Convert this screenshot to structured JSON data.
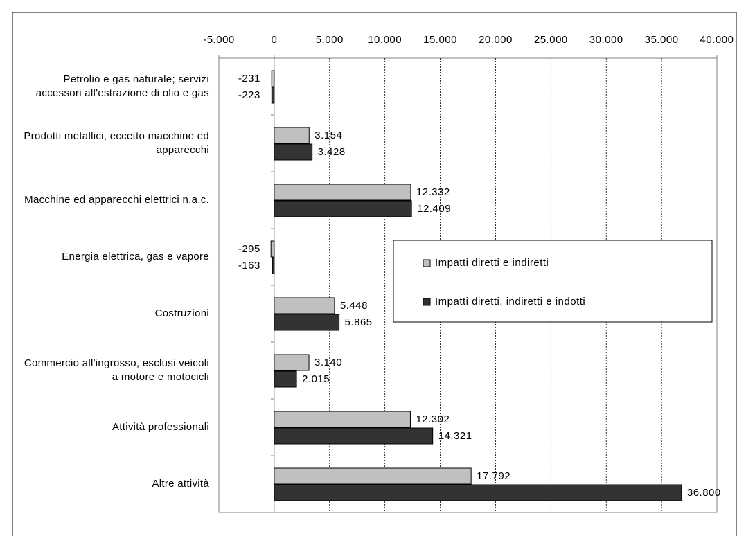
{
  "chart_data": {
    "type": "barh",
    "categories": [
      "Petrolio e gas naturale; servizi accessori all'estrazione di olio e gas",
      "Prodotti metallici, eccetto macchine ed apparecchi",
      "Macchine ed apparecchi elettrici n.a.c.",
      "Energia elettrica, gas e vapore",
      "Costruzioni",
      "Commercio all'ingrosso, esclusi veicoli a motore e motocicli",
      "Attività professionali",
      "Altre attività"
    ],
    "series": [
      {
        "name": "Impatti diretti e indiretti",
        "color": "#c0c0c0",
        "values": [
          -231,
          3154,
          12332,
          -295,
          5448,
          3140,
          12302,
          17792
        ],
        "value_labels": [
          "-231",
          "3.154",
          "12.332",
          "-295",
          "5.448",
          "3.140",
          "12.302",
          "17.792"
        ]
      },
      {
        "name": "Impatti diretti, indiretti e indotti",
        "color": "#333333",
        "values": [
          -223,
          3428,
          12409,
          -163,
          5865,
          2015,
          14321,
          36800
        ],
        "value_labels": [
          "-223",
          "3.428",
          "12.409",
          "-163",
          "5.865",
          "2.015",
          "14.321",
          "36.800"
        ]
      }
    ],
    "xlim": [
      -5000,
      40000
    ],
    "xticks": [
      {
        "value": -5000,
        "label": "-5.000"
      },
      0,
      {
        "value": 5000,
        "label": "5.000"
      },
      {
        "value": 10000,
        "label": "10.000"
      },
      {
        "value": 15000,
        "label": "15.000"
      },
      {
        "value": 20000,
        "label": "20.000"
      },
      {
        "value": 25000,
        "label": "25.000"
      },
      {
        "value": 30000,
        "label": "30.000"
      },
      {
        "value": 35000,
        "label": "35.000"
      },
      {
        "value": 40000,
        "label": "40.000"
      }
    ],
    "grid": true
  }
}
